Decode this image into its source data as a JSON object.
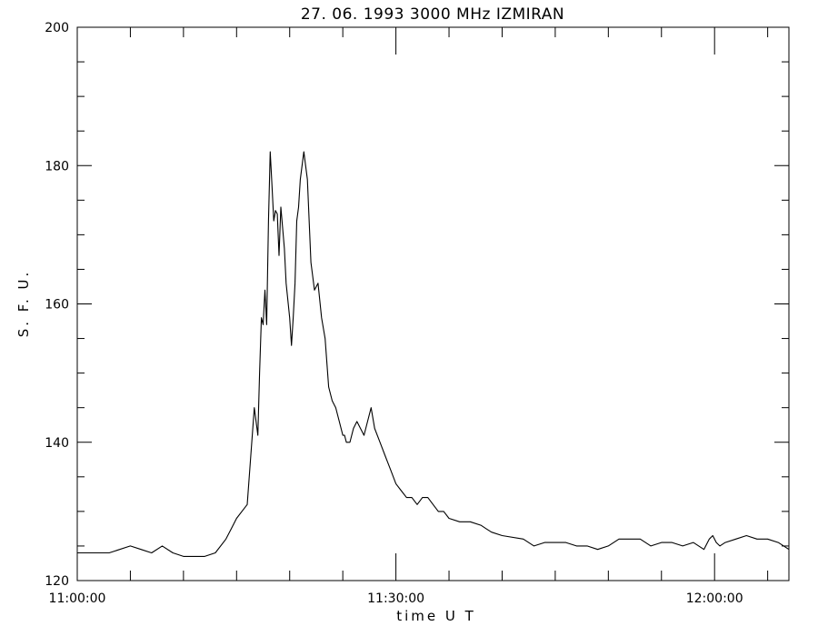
{
  "chart_data": {
    "type": "line",
    "title": "27.  06.  1993    3000 MHz      IZMIRAN",
    "xlabel": "time   U T",
    "ylabel": "S. F. U.",
    "xlim": [
      "11:00:00",
      "12:07:00"
    ],
    "ylim": [
      120,
      200
    ],
    "x_ticks": [
      "11:00:00",
      "11:30:00",
      "12:00:00"
    ],
    "y_ticks": [
      "120",
      "140",
      "160",
      "180",
      "200"
    ],
    "grid": false,
    "line_color": "#000000",
    "series": [
      {
        "x": [
          "11:00:00",
          "11:03:00",
          "11:05:00",
          "11:06:00",
          "11:07:00",
          "11:08:00",
          "11:09:00",
          "11:10:00",
          "11:12:00",
          "11:13:00",
          "11:14:00",
          "11:14:30",
          "11:15:00",
          "11:15:30",
          "11:16:00",
          "11:16:20",
          "11:16:40",
          "11:17:00",
          "11:17:10",
          "11:17:20",
          "11:17:30",
          "11:17:40",
          "11:17:50",
          "11:18:00",
          "11:18:10",
          "11:18:20",
          "11:18:30",
          "11:18:40",
          "11:18:50",
          "11:19:00",
          "11:19:10",
          "11:19:30",
          "11:19:40",
          "11:20:00",
          "11:20:10",
          "11:20:20",
          "11:20:30",
          "11:20:40",
          "11:20:50",
          "11:21:00",
          "11:21:20",
          "11:21:40",
          "11:22:00",
          "11:22:20",
          "11:22:40",
          "11:23:00",
          "11:23:20",
          "11:23:40",
          "11:24:00",
          "11:24:20",
          "11:24:40",
          "11:25:00",
          "11:25:10",
          "11:25:20",
          "11:25:40",
          "11:26:00",
          "11:26:20",
          "11:26:40",
          "11:27:00",
          "11:27:20",
          "11:27:40",
          "11:28:00",
          "11:28:30",
          "11:29:00",
          "11:29:30",
          "11:30:00",
          "11:30:30",
          "11:31:00",
          "11:31:30",
          "11:32:00",
          "11:32:30",
          "11:33:00",
          "11:33:30",
          "11:34:00",
          "11:34:30",
          "11:35:00",
          "11:36:00",
          "11:37:00",
          "11:38:00",
          "11:38:30",
          "11:39:00",
          "11:40:00",
          "11:42:00",
          "11:43:00",
          "11:44:00",
          "11:45:00",
          "11:46:00",
          "11:47:00",
          "11:48:00",
          "11:49:00",
          "11:50:00",
          "11:51:00",
          "11:52:00",
          "11:53:00",
          "11:54:00",
          "11:55:00",
          "11:56:00",
          "11:57:00",
          "11:58:00",
          "11:59:00",
          "11:59:30",
          "11:59:50",
          "12:00:10",
          "12:00:30",
          "12:01:00",
          "12:02:00",
          "12:03:00",
          "12:04:00",
          "12:05:00",
          "12:06:00",
          "12:07:00"
        ],
        "values": [
          124,
          124,
          125,
          124.5,
          124,
          125,
          124,
          123.5,
          123.5,
          124,
          126,
          127.5,
          129,
          130,
          131,
          138,
          145,
          141,
          150,
          158,
          157,
          162,
          157,
          172,
          182,
          177,
          172,
          173.5,
          173,
          167,
          174,
          168,
          163,
          158,
          154,
          158,
          163,
          172,
          174,
          178,
          182,
          178,
          166,
          162,
          163,
          158,
          155,
          148,
          146,
          145,
          143,
          141,
          141,
          140,
          140,
          142,
          143,
          142,
          141,
          143,
          145,
          142,
          140,
          138,
          136,
          134,
          133,
          132,
          132,
          131,
          132,
          132,
          131,
          130,
          130,
          129,
          128.5,
          128.5,
          128,
          127.5,
          127,
          126.5,
          126,
          125,
          125.5,
          125.5,
          125.5,
          125,
          125,
          124.5,
          125,
          126,
          126,
          126,
          125,
          125.5,
          125.5,
          125,
          125.5,
          124.5,
          126,
          126.5,
          125.5,
          125,
          125.5,
          126,
          126.5,
          126,
          126,
          125.5,
          124.5
        ]
      }
    ]
  }
}
